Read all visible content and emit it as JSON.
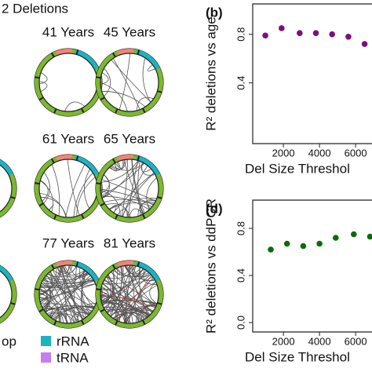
{
  "panel_title": "2 Deletions",
  "circos": [
    {
      "label": "41 Years"
    },
    {
      "label": "45 Years"
    },
    {
      "label": "61 Years"
    },
    {
      "label": "65 Years"
    },
    {
      "label": "77 Years"
    },
    {
      "label": "81 Years"
    }
  ],
  "legend": {
    "items": [
      {
        "label": "op"
      },
      {
        "label": "rRNA",
        "color": "#1bb3c2"
      },
      {
        "label": "tRNA",
        "color": "#c77dee"
      }
    ]
  },
  "chart_data": [
    {
      "type": "scatter",
      "panel": "(b)",
      "ylabel": "R² deletions vs age",
      "xlabel": "Del Size Threshol",
      "color": "#7b0f7b",
      "x": [
        1000,
        1900,
        2900,
        3800,
        4700,
        5600,
        6500
      ],
      "values": [
        0.79,
        0.85,
        0.81,
        0.81,
        0.8,
        0.78,
        0.72
      ],
      "xlim": [
        300,
        9000
      ],
      "xticks": [
        2000,
        4000,
        6000
      ],
      "ylim": [
        -0.1,
        1.05
      ],
      "yticks": [
        0.4,
        0.8
      ]
    },
    {
      "type": "scatter",
      "panel": "(d)",
      "ylabel": "R² deletions vs ddPCR",
      "xlabel": "Del Size Threshol",
      "color": "#0b6b0b",
      "x": [
        1300,
        2200,
        3100,
        4000,
        4900,
        5900,
        6800
      ],
      "values": [
        0.62,
        0.67,
        0.65,
        0.67,
        0.72,
        0.75,
        0.73
      ],
      "xlim": [
        300,
        9000
      ],
      "xticks": [
        2000,
        4000,
        6000
      ],
      "ylim": [
        -0.08,
        1.04
      ],
      "yticks": [
        {
          "value": 0,
          "label": "0.0"
        },
        0.4,
        0.8
      ]
    }
  ]
}
